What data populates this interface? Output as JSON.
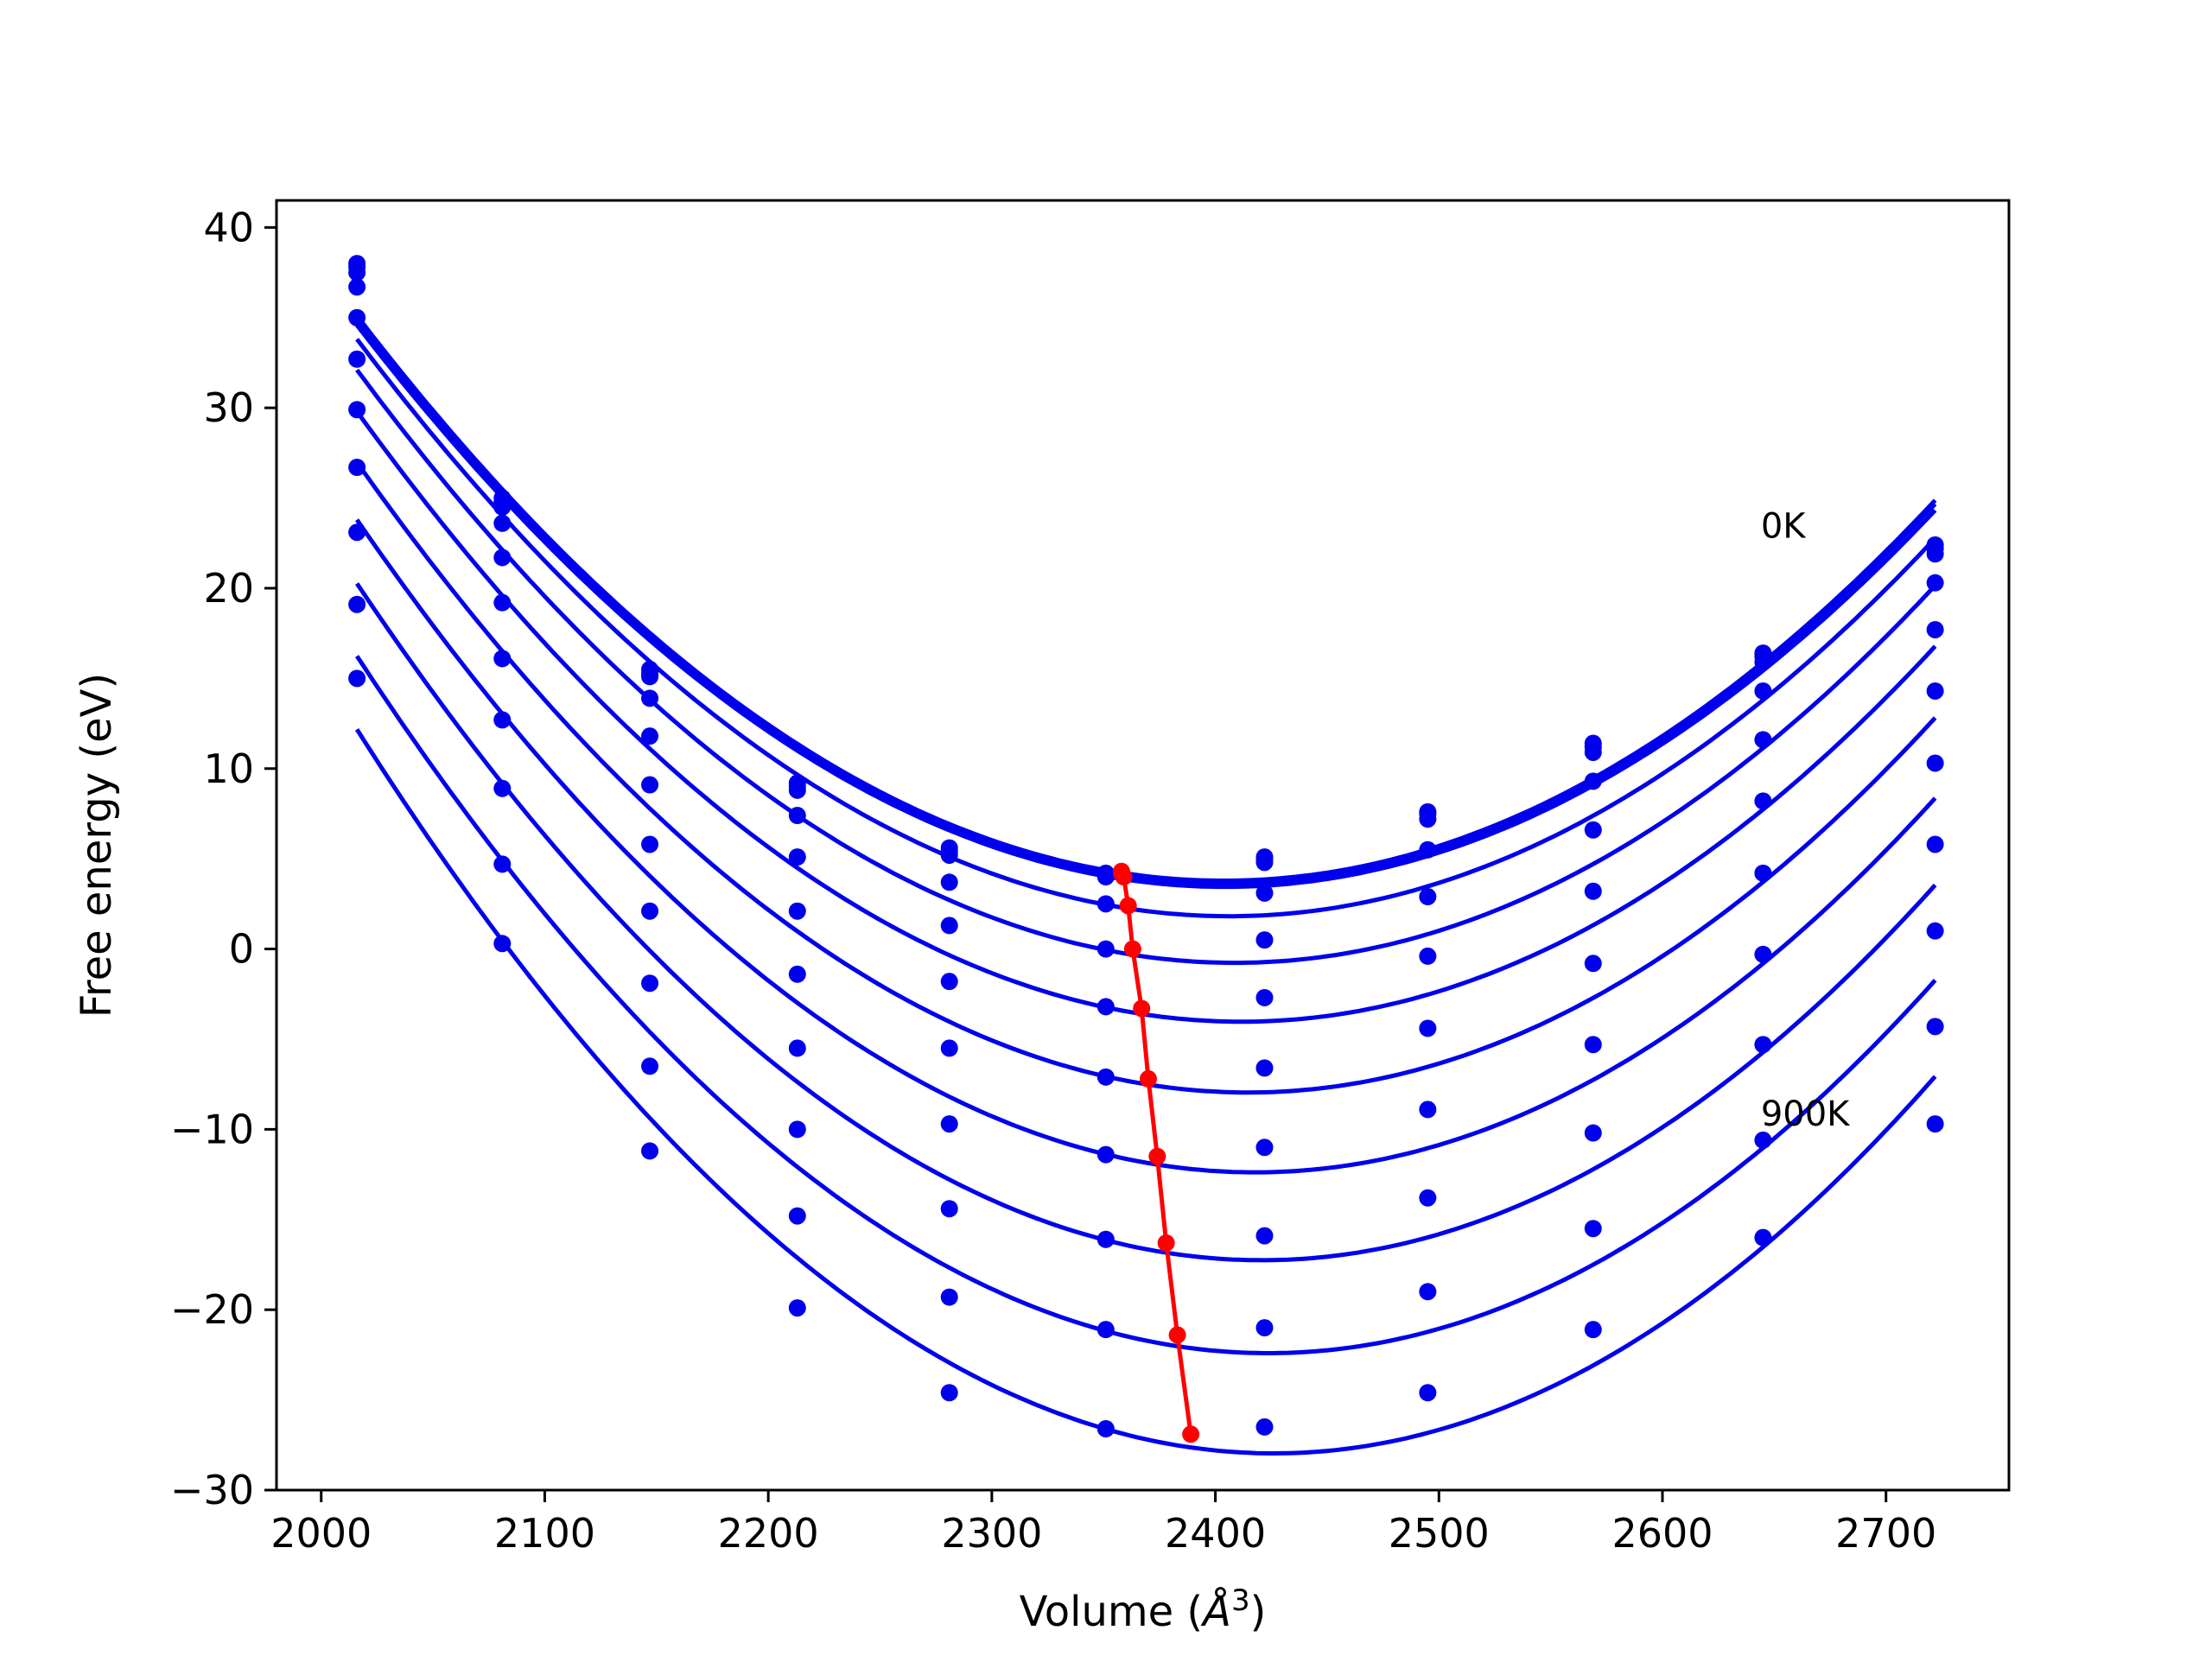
{
  "chart_data": {
    "type": "line",
    "xlabel": "Volume (Å³)",
    "xlabel_main": "Volume (",
    "xlabel_unit": "Å",
    "xlabel_sup": "3",
    "xlabel_close": ")",
    "ylabel": "Free energy (eV)",
    "xlim": [
      1980,
      2755
    ],
    "ylim": [
      -30,
      41.5
    ],
    "xticks": [
      2000,
      2100,
      2200,
      2300,
      2400,
      2500,
      2600,
      2700
    ],
    "xtick_labels": [
      "2000",
      "2100",
      "2200",
      "2300",
      "2400",
      "2500",
      "2600",
      "2700"
    ],
    "yticks": [
      -30,
      -20,
      -10,
      0,
      10,
      20,
      30,
      40
    ],
    "ytick_labels": [
      "−30",
      "−20",
      "−10",
      "0",
      "10",
      "20",
      "30",
      "40"
    ],
    "grid": false,
    "legend": false,
    "annotations": [
      {
        "text": "0K",
        "x": 2644,
        "y": 22.8
      },
      {
        "text": "900K",
        "x": 2644,
        "y": -9.8
      }
    ],
    "x": [
      2016,
      2081,
      2147,
      2213,
      2281,
      2351,
      2422,
      2495,
      2569,
      2645,
      2722
    ],
    "series": [
      {
        "values": [
          38.0,
          25.0,
          15.5,
          9.2,
          5.6,
          4.2,
          5.1,
          7.6,
          11.4,
          16.4,
          22.4
        ]
      },
      {
        "values": [
          37.8,
          24.8,
          15.3,
          9.0,
          5.4,
          4.1,
          5.0,
          7.5,
          11.2,
          16.2,
          22.2
        ]
      },
      {
        "values": [
          37.5,
          24.5,
          15.1,
          8.8,
          5.2,
          4.0,
          4.8,
          7.2,
          10.9,
          15.9,
          21.9
        ]
      },
      {
        "values": [
          36.7,
          23.6,
          13.9,
          7.4,
          3.7,
          2.5,
          3.1,
          5.5,
          9.3,
          14.3,
          20.3
        ]
      },
      {
        "values": [
          35.0,
          21.7,
          11.8,
          5.1,
          1.3,
          0.0,
          0.5,
          2.9,
          6.6,
          11.6,
          17.7
        ]
      },
      {
        "values": [
          32.7,
          19.2,
          9.1,
          2.1,
          -1.8,
          -3.2,
          -2.7,
          -0.4,
          3.2,
          8.2,
          14.3
        ]
      },
      {
        "values": [
          29.9,
          16.1,
          5.8,
          -1.4,
          -5.5,
          -7.1,
          -6.6,
          -4.4,
          -0.8,
          4.2,
          10.3
        ]
      },
      {
        "values": [
          26.7,
          12.7,
          2.1,
          -5.5,
          -9.7,
          -11.4,
          -11.0,
          -8.9,
          -5.3,
          -0.3,
          5.8
        ]
      },
      {
        "values": [
          23.1,
          8.9,
          -1.9,
          -10.0,
          -14.4,
          -16.1,
          -15.9,
          -13.8,
          -10.2,
          -5.3,
          1.0
        ]
      },
      {
        "values": [
          19.1,
          4.7,
          -6.5,
          -14.8,
          -19.3,
          -21.1,
          -21.0,
          -19.0,
          -15.5,
          -10.6,
          -4.3
        ]
      },
      {
        "values": [
          15.0,
          0.3,
          -11.2,
          -19.9,
          -24.6,
          -26.6,
          -26.5,
          -24.6,
          -21.1,
          -16.0,
          -9.7
        ]
      }
    ],
    "minima_line": {
      "x": [
        2358,
        2358,
        2359,
        2361,
        2363,
        2367,
        2370,
        2374,
        2378,
        2383,
        2389
      ],
      "y": [
        4.3,
        4.2,
        4.0,
        2.4,
        0.0,
        -3.3,
        -7.2,
        -11.5,
        -16.3,
        -21.4,
        -26.9
      ]
    },
    "colors": {
      "curves": "#0000ee",
      "minima": "#ff0000",
      "axes": "#000000"
    }
  }
}
